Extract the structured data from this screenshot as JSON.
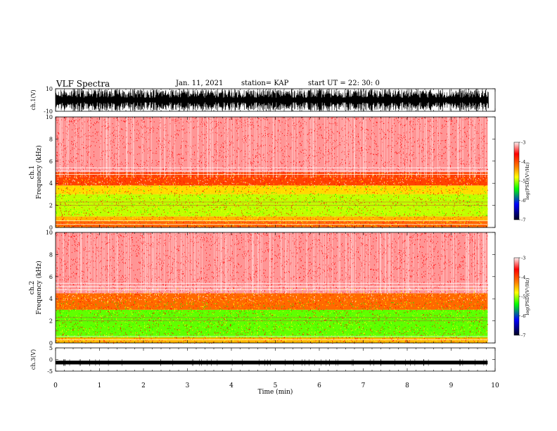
{
  "header": {
    "title": "VLF Spectra",
    "date": "Jan. 11, 2021",
    "station": "station= KAP",
    "start": "start  UT =  22: 30: 0"
  },
  "chart_data": [
    {
      "type": "line",
      "panel": "ch1-waveform",
      "ylabel": "ch.1(V)",
      "ylim": [
        -10,
        10
      ],
      "y_ticks": [
        "10",
        "-10"
      ],
      "xlim": [
        0,
        10
      ],
      "envelope_note": "dense waveform filling full -10..10 range"
    },
    {
      "type": "heatmap",
      "panel": "ch1-spectrogram",
      "ylabel": "ch.1",
      "ylabel2": "Frequency  (kHz)",
      "ylim": [
        0,
        10
      ],
      "y_ticks": [
        "0",
        "2",
        "4",
        "6",
        "8",
        "10"
      ],
      "xlim": [
        0,
        9.83
      ],
      "colorbar": {
        "label": "log(PSD)(V²/Hz)",
        "range": [
          -7,
          -3
        ],
        "ticks": [
          "-3",
          "-4",
          "-5",
          "-6",
          "-7"
        ]
      },
      "bands": [
        {
          "f_low": 0.0,
          "f_high": 0.6,
          "log_psd": -4.0
        },
        {
          "f_low": 0.6,
          "f_high": 1.0,
          "log_psd": -4.2
        },
        {
          "f_low": 1.0,
          "f_high": 3.0,
          "log_psd": -4.6
        },
        {
          "f_low": 3.0,
          "f_high": 3.8,
          "log_psd": -4.3
        },
        {
          "f_low": 3.8,
          "f_high": 5.0,
          "log_psd": -3.9
        },
        {
          "f_low": 5.0,
          "f_high": 10.0,
          "log_psd": -3.3
        }
      ]
    },
    {
      "type": "heatmap",
      "panel": "ch2-spectrogram",
      "ylabel": "ch.2",
      "ylabel2": "Frequency  (kHz)",
      "ylim": [
        0,
        10
      ],
      "y_ticks": [
        "0",
        "2",
        "4",
        "6",
        "8",
        "10"
      ],
      "xlim": [
        0,
        9.83
      ],
      "colorbar": {
        "label": "log(PSD)(V²/Hz)",
        "range": [
          -7,
          -3
        ],
        "ticks": [
          "-3",
          "-4",
          "-5",
          "-6",
          "-7"
        ]
      },
      "bands": [
        {
          "f_low": 0.0,
          "f_high": 0.5,
          "log_psd": -4.2
        },
        {
          "f_low": 0.5,
          "f_high": 3.0,
          "log_psd": -4.9
        },
        {
          "f_low": 3.0,
          "f_high": 4.5,
          "log_psd": -4.0
        },
        {
          "f_low": 4.5,
          "f_high": 10.0,
          "log_psd": -3.3
        }
      ]
    },
    {
      "type": "line",
      "panel": "ch3-waveform",
      "ylabel": "ch.3(V)",
      "ylim": [
        -5,
        5
      ],
      "y_ticks": [
        "5",
        "0",
        "-5"
      ],
      "xlim": [
        0,
        9.83
      ],
      "level": -1.3,
      "thickness": 0.8
    }
  ],
  "xaxis": {
    "label": "Time  (min)",
    "ticks": [
      "0",
      "1",
      "2",
      "3",
      "4",
      "5",
      "6",
      "7",
      "8",
      "9",
      "10"
    ],
    "range": [
      0,
      10
    ]
  },
  "colors": {
    "pale": "#ffffff",
    "red": "#ff0000",
    "yellow": "#ffff00",
    "green": "#00ff00",
    "blue": "#0000ff"
  }
}
